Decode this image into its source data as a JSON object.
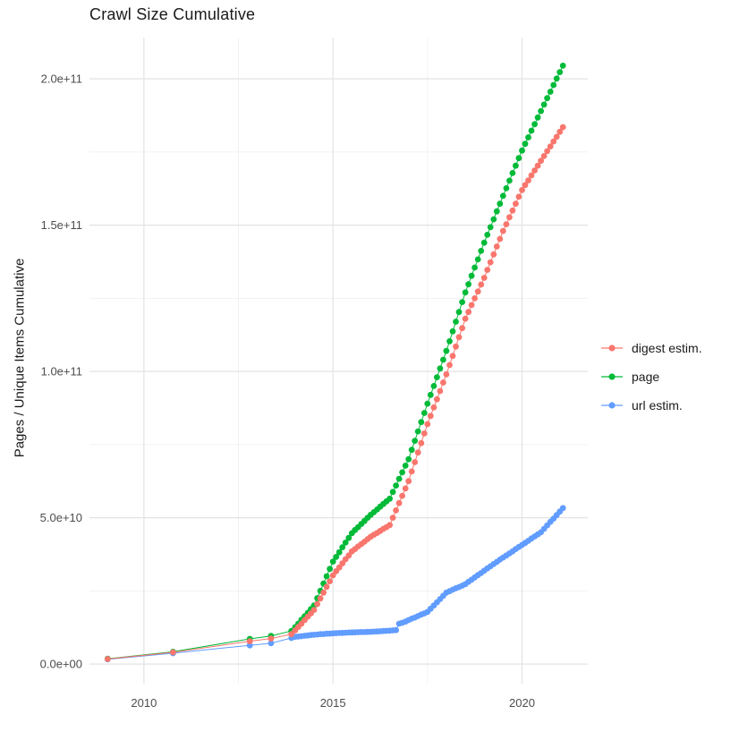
{
  "chart_data": {
    "type": "line",
    "title": "Crawl Size Cumulative",
    "xlabel": "",
    "ylabel": "Pages / Unique Items Cumulative",
    "legend_position": "right",
    "grid": true,
    "background": "#ffffff",
    "grid_major_color": "#e3e3e3",
    "grid_minor_color": "#efefef",
    "axis_text_color": "#4d4d4d",
    "x_range": [
      2008.56,
      2021.74
    ],
    "y_range": [
      -6700000000.0,
      214100000000.0
    ],
    "x_ticks": [
      {
        "value": 2010,
        "label": "2010"
      },
      {
        "value": 2015,
        "label": "2015"
      },
      {
        "value": 2020,
        "label": "2020"
      }
    ],
    "x_minor_ticks": [
      2012.5,
      2017.5
    ],
    "y_ticks": [
      {
        "value": 0,
        "label": "0.0e+00"
      },
      {
        "value": 50000000000.0,
        "label": "5.0e+10"
      },
      {
        "value": 100000000000.0,
        "label": "1.0e+11"
      },
      {
        "value": 150000000000.0,
        "label": "1.5e+11"
      },
      {
        "value": 200000000000.0,
        "label": "2.0e+11"
      }
    ],
    "y_minor_ticks": [
      25000000000.0,
      75000000000.0,
      125000000000.0,
      175000000000.0
    ],
    "unit_multiplier": 1000000000.0,
    "monthly_step_years": 0.0833333,
    "series": [
      {
        "name": "digest estim.",
        "color": "#F8766D",
        "early_points": [
          [
            2009.04,
            1.7
          ],
          [
            2010.77,
            4.0
          ],
          [
            2012.8,
            7.8
          ],
          [
            2013.36,
            8.7
          ],
          [
            2013.9,
            10.2
          ]
        ],
        "monthly_start": 2014.0,
        "monthly_values_billions": [
          11.5,
          12.7,
          13.8,
          15.0,
          16.2,
          17.3,
          18.5,
          20.5,
          22.4,
          24.4,
          26.4,
          28.3,
          30.3,
          31.7,
          33.0,
          34.4,
          35.8,
          37.1,
          38.5,
          39.3,
          40.2,
          41.0,
          41.8,
          42.7,
          43.5,
          44.2,
          44.8,
          45.5,
          46.2,
          46.8,
          47.5,
          50.0,
          52.5,
          55.0,
          57.5,
          60.0,
          62.5,
          65.8,
          69.0,
          72.3,
          75.5,
          78.8,
          82.0,
          84.8,
          87.7,
          90.5,
          93.3,
          96.2,
          99.0,
          102.2,
          105.3,
          108.5,
          111.7,
          114.8,
          118.0,
          120.3,
          122.7,
          125.0,
          127.3,
          129.7,
          132.0,
          134.7,
          137.3,
          140.0,
          142.7,
          145.3,
          148.0,
          150.3,
          152.7,
          155.0,
          157.3,
          159.7,
          162.0,
          163.7,
          165.3,
          167.0,
          168.7,
          170.3,
          172.0,
          173.6,
          175.3,
          176.9,
          178.6,
          180.2,
          181.9,
          183.5
        ]
      },
      {
        "name": "page",
        "color": "#00BA38",
        "early_points": [
          [
            2009.04,
            1.8
          ],
          [
            2010.77,
            4.2
          ],
          [
            2012.8,
            8.6
          ],
          [
            2013.36,
            9.6
          ],
          [
            2013.9,
            11.3
          ]
        ],
        "monthly_start": 2014.0,
        "monthly_values_billions": [
          12.6,
          13.8,
          15.1,
          16.3,
          17.5,
          18.8,
          20.0,
          22.5,
          25.0,
          27.5,
          30.0,
          32.5,
          35.0,
          36.6,
          38.2,
          39.9,
          41.5,
          43.1,
          44.7,
          45.8,
          46.8,
          47.9,
          48.9,
          50.0,
          51.0,
          51.9,
          52.8,
          53.8,
          54.7,
          55.6,
          56.5,
          58.8,
          61.0,
          63.3,
          65.5,
          67.8,
          70.0,
          73.2,
          76.3,
          79.5,
          82.7,
          85.8,
          89.0,
          92.0,
          95.0,
          98.0,
          101.0,
          104.0,
          107.0,
          110.3,
          113.7,
          117.0,
          120.3,
          123.7,
          127.0,
          129.8,
          132.7,
          135.5,
          138.3,
          141.2,
          144.0,
          146.7,
          149.3,
          152.0,
          154.7,
          157.3,
          160.0,
          162.6,
          165.2,
          167.8,
          170.3,
          172.9,
          175.5,
          177.8,
          180.0,
          182.3,
          184.5,
          186.8,
          189.0,
          191.2,
          193.4,
          195.6,
          197.9,
          200.1,
          202.3,
          204.5
        ]
      },
      {
        "name": "url estim.",
        "color": "#619CFF",
        "early_points": [
          [
            2009.04,
            1.6
          ],
          [
            2010.77,
            3.7
          ],
          [
            2012.8,
            6.4
          ],
          [
            2013.36,
            7.1
          ],
          [
            2013.9,
            8.9
          ]
        ],
        "monthly_start": 2014.0,
        "monthly_values_billions": [
          9.3,
          9.4,
          9.5,
          9.65,
          9.75,
          9.9,
          10.0,
          10.1,
          10.2,
          10.25,
          10.35,
          10.4,
          10.5,
          10.55,
          10.6,
          10.65,
          10.7,
          10.75,
          10.8,
          10.83,
          10.87,
          10.9,
          10.93,
          10.97,
          11.0,
          11.07,
          11.13,
          11.2,
          11.27,
          11.33,
          11.4,
          11.5,
          11.6,
          13.8,
          14.1,
          14.5,
          15.0,
          15.5,
          15.9,
          16.4,
          16.9,
          17.3,
          17.8,
          18.9,
          20.0,
          21.1,
          22.2,
          23.3,
          24.4,
          24.9,
          25.4,
          25.9,
          26.3,
          26.8,
          27.3,
          28.1,
          28.8,
          29.6,
          30.4,
          31.1,
          31.9,
          32.7,
          33.4,
          34.2,
          34.9,
          35.7,
          36.4,
          37.1,
          37.8,
          38.5,
          39.3,
          40.0,
          40.7,
          41.4,
          42.1,
          42.9,
          43.6,
          44.3,
          45.0,
          46.2,
          47.4,
          48.6,
          49.7,
          50.9,
          52.1,
          53.3
        ]
      }
    ]
  }
}
